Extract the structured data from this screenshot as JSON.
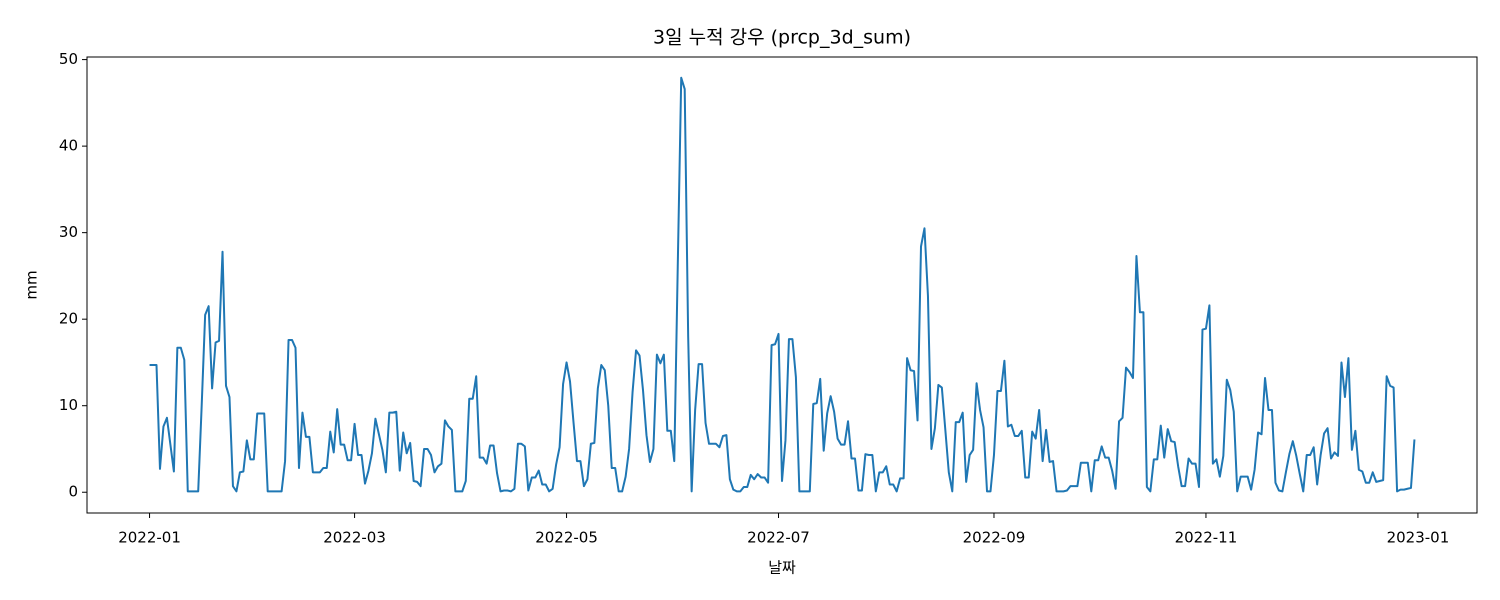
{
  "chart_data": {
    "type": "line",
    "title": "3일 누적 강우 (prcp_3d_sum)",
    "x_label": "날짜",
    "y_label": "mm",
    "color": "#1f77b4",
    "xlim": [
      "2021-12-14",
      "2023-01-18"
    ],
    "ylim": [
      -2.4,
      50.3
    ],
    "xticks": [
      {
        "value": "2022-01-01",
        "label": "2022-01"
      },
      {
        "value": "2022-03-01",
        "label": "2022-03"
      },
      {
        "value": "2022-05-01",
        "label": "2022-05"
      },
      {
        "value": "2022-07-01",
        "label": "2022-07"
      },
      {
        "value": "2022-09-01",
        "label": "2022-09"
      },
      {
        "value": "2022-11-01",
        "label": "2022-11"
      },
      {
        "value": "2023-01-01",
        "label": "2023-01"
      }
    ],
    "yticks": [
      0,
      10,
      20,
      30,
      40,
      50
    ],
    "grid": false,
    "x": [
      "2022-01-01",
      "2022-01-02",
      "2022-01-03",
      "2022-01-04",
      "2022-01-05",
      "2022-01-06",
      "2022-01-07",
      "2022-01-08",
      "2022-01-09",
      "2022-01-10",
      "2022-01-11",
      "2022-01-12",
      "2022-01-13",
      "2022-01-14",
      "2022-01-15",
      "2022-01-16",
      "2022-01-17",
      "2022-01-18",
      "2022-01-19",
      "2022-01-20",
      "2022-01-21",
      "2022-01-22",
      "2022-01-23",
      "2022-01-24",
      "2022-01-25",
      "2022-01-26",
      "2022-01-27",
      "2022-01-28",
      "2022-01-29",
      "2022-01-30",
      "2022-01-31",
      "2022-02-01",
      "2022-02-02",
      "2022-02-03",
      "2022-02-04",
      "2022-02-05",
      "2022-02-06",
      "2022-02-07",
      "2022-02-08",
      "2022-02-09",
      "2022-02-10",
      "2022-02-11",
      "2022-02-12",
      "2022-02-13",
      "2022-02-14",
      "2022-02-15",
      "2022-02-16",
      "2022-02-17",
      "2022-02-18",
      "2022-02-19",
      "2022-02-20",
      "2022-02-21",
      "2022-02-22",
      "2022-02-23",
      "2022-02-24",
      "2022-02-25",
      "2022-02-26",
      "2022-02-27",
      "2022-02-28",
      "2022-03-01",
      "2022-03-02",
      "2022-03-03",
      "2022-03-04",
      "2022-03-05",
      "2022-03-06",
      "2022-03-07",
      "2022-03-08",
      "2022-03-09",
      "2022-03-10",
      "2022-03-11",
      "2022-03-12",
      "2022-03-13",
      "2022-03-14",
      "2022-03-15",
      "2022-03-16",
      "2022-03-17",
      "2022-03-18",
      "2022-03-19",
      "2022-03-20",
      "2022-03-21",
      "2022-03-22",
      "2022-03-23",
      "2022-03-24",
      "2022-03-25",
      "2022-03-26",
      "2022-03-27",
      "2022-03-28",
      "2022-03-29",
      "2022-03-30",
      "2022-03-31",
      "2022-04-01",
      "2022-04-02",
      "2022-04-03",
      "2022-04-04",
      "2022-04-05",
      "2022-04-06",
      "2022-04-07",
      "2022-04-08",
      "2022-04-09",
      "2022-04-10",
      "2022-04-11",
      "2022-04-12",
      "2022-04-13",
      "2022-04-14",
      "2022-04-15",
      "2022-04-16",
      "2022-04-17",
      "2022-04-18",
      "2022-04-19",
      "2022-04-20",
      "2022-04-21",
      "2022-04-22",
      "2022-04-23",
      "2022-04-24",
      "2022-04-25",
      "2022-04-26",
      "2022-04-27",
      "2022-04-28",
      "2022-04-29",
      "2022-04-30",
      "2022-05-01",
      "2022-05-02",
      "2022-05-03",
      "2022-05-04",
      "2022-05-05",
      "2022-05-06",
      "2022-05-07",
      "2022-05-08",
      "2022-05-09",
      "2022-05-10",
      "2022-05-11",
      "2022-05-12",
      "2022-05-13",
      "2022-05-14",
      "2022-05-15",
      "2022-05-16",
      "2022-05-17",
      "2022-05-18",
      "2022-05-19",
      "2022-05-20",
      "2022-05-21",
      "2022-05-22",
      "2022-05-23",
      "2022-05-24",
      "2022-05-25",
      "2022-05-26",
      "2022-05-27",
      "2022-05-28",
      "2022-05-29",
      "2022-05-30",
      "2022-05-31",
      "2022-06-01",
      "2022-06-02",
      "2022-06-03",
      "2022-06-04",
      "2022-06-05",
      "2022-06-06",
      "2022-06-07",
      "2022-06-08",
      "2022-06-09",
      "2022-06-10",
      "2022-06-11",
      "2022-06-12",
      "2022-06-13",
      "2022-06-14",
      "2022-06-15",
      "2022-06-16",
      "2022-06-17",
      "2022-06-18",
      "2022-06-19",
      "2022-06-20",
      "2022-06-21",
      "2022-06-22",
      "2022-06-23",
      "2022-06-24",
      "2022-06-25",
      "2022-06-26",
      "2022-06-27",
      "2022-06-28",
      "2022-06-29",
      "2022-06-30",
      "2022-07-01",
      "2022-07-02",
      "2022-07-03",
      "2022-07-04",
      "2022-07-05",
      "2022-07-06",
      "2022-07-07",
      "2022-07-08",
      "2022-07-09",
      "2022-07-10",
      "2022-07-11",
      "2022-07-12",
      "2022-07-13",
      "2022-07-14",
      "2022-07-15",
      "2022-07-16",
      "2022-07-17",
      "2022-07-18",
      "2022-07-19",
      "2022-07-20",
      "2022-07-21",
      "2022-07-22",
      "2022-07-23",
      "2022-07-24",
      "2022-07-25",
      "2022-07-26",
      "2022-07-27",
      "2022-07-28",
      "2022-07-29",
      "2022-07-30",
      "2022-07-31",
      "2022-08-01",
      "2022-08-02",
      "2022-08-03",
      "2022-08-04",
      "2022-08-05",
      "2022-08-06",
      "2022-08-07",
      "2022-08-08",
      "2022-08-09",
      "2022-08-10",
      "2022-08-11",
      "2022-08-12",
      "2022-08-13",
      "2022-08-14",
      "2022-08-15",
      "2022-08-16",
      "2022-08-17",
      "2022-08-18",
      "2022-08-19",
      "2022-08-20",
      "2022-08-21",
      "2022-08-22",
      "2022-08-23",
      "2022-08-24",
      "2022-08-25",
      "2022-08-26",
      "2022-08-27",
      "2022-08-28",
      "2022-08-29",
      "2022-08-30",
      "2022-08-31",
      "2022-09-01",
      "2022-09-02",
      "2022-09-03",
      "2022-09-04",
      "2022-09-05",
      "2022-09-06",
      "2022-09-07",
      "2022-09-08",
      "2022-09-09",
      "2022-09-10",
      "2022-09-11",
      "2022-09-12",
      "2022-09-13",
      "2022-09-14",
      "2022-09-15",
      "2022-09-16",
      "2022-09-17",
      "2022-09-18",
      "2022-09-19",
      "2022-09-20",
      "2022-09-21",
      "2022-09-22",
      "2022-09-23",
      "2022-09-24",
      "2022-09-25",
      "2022-09-26",
      "2022-09-27",
      "2022-09-28",
      "2022-09-29",
      "2022-09-30",
      "2022-10-01",
      "2022-10-02",
      "2022-10-03",
      "2022-10-04",
      "2022-10-05",
      "2022-10-06",
      "2022-10-07",
      "2022-10-08",
      "2022-10-09",
      "2022-10-10",
      "2022-10-11",
      "2022-10-12",
      "2022-10-13",
      "2022-10-14",
      "2022-10-15",
      "2022-10-16",
      "2022-10-17",
      "2022-10-18",
      "2022-10-19",
      "2022-10-20",
      "2022-10-21",
      "2022-10-22",
      "2022-10-23",
      "2022-10-24",
      "2022-10-25",
      "2022-10-26",
      "2022-10-27",
      "2022-10-28",
      "2022-10-29",
      "2022-10-30",
      "2022-10-31",
      "2022-11-01",
      "2022-11-02",
      "2022-11-03",
      "2022-11-04",
      "2022-11-05",
      "2022-11-06",
      "2022-11-07",
      "2022-11-08",
      "2022-11-09",
      "2022-11-10",
      "2022-11-11",
      "2022-11-12",
      "2022-11-13",
      "2022-11-14",
      "2022-11-15",
      "2022-11-16",
      "2022-11-17",
      "2022-11-18",
      "2022-11-19",
      "2022-11-20",
      "2022-11-21",
      "2022-11-22",
      "2022-11-23",
      "2022-11-24",
      "2022-11-25",
      "2022-11-26",
      "2022-11-27",
      "2022-11-28",
      "2022-11-29",
      "2022-11-30",
      "2022-12-01",
      "2022-12-02",
      "2022-12-03",
      "2022-12-04",
      "2022-12-05",
      "2022-12-06",
      "2022-12-07",
      "2022-12-08",
      "2022-12-09",
      "2022-12-10",
      "2022-12-11",
      "2022-12-12",
      "2022-12-13",
      "2022-12-14",
      "2022-12-15",
      "2022-12-16",
      "2022-12-17",
      "2022-12-18",
      "2022-12-19",
      "2022-12-20",
      "2022-12-21",
      "2022-12-22",
      "2022-12-23",
      "2022-12-24",
      "2022-12-25",
      "2022-12-26",
      "2022-12-27",
      "2022-12-28",
      "2022-12-29",
      "2022-12-30",
      "2022-12-31"
    ],
    "values": [
      14.7,
      14.7,
      14.7,
      2.7,
      7.6,
      8.6,
      5.5,
      2.4,
      16.7,
      16.7,
      15.3,
      0.1,
      0.1,
      0.1,
      0.1,
      10.0,
      20.5,
      21.5,
      12.0,
      17.3,
      17.5,
      27.8,
      12.3,
      11.0,
      0.7,
      0.1,
      2.3,
      2.4,
      6.0,
      3.8,
      3.8,
      9.1,
      9.1,
      9.1,
      0.1,
      0.1,
      0.1,
      0.1,
      0.1,
      3.6,
      17.6,
      17.6,
      16.7,
      2.8,
      9.2,
      6.4,
      6.4,
      2.3,
      2.3,
      2.3,
      2.8,
      2.8,
      7.0,
      4.6,
      9.6,
      5.5,
      5.5,
      3.7,
      3.7,
      7.9,
      4.3,
      4.3,
      1.0,
      2.5,
      4.5,
      8.5,
      6.7,
      4.9,
      2.3,
      9.2,
      9.2,
      9.3,
      2.5,
      6.9,
      4.5,
      5.7,
      1.3,
      1.2,
      0.7,
      5.0,
      5.0,
      4.3,
      2.3,
      3.0,
      3.3,
      8.3,
      7.6,
      7.2,
      0.1,
      0.1,
      0.1,
      1.3,
      10.8,
      10.8,
      13.4,
      4.0,
      4.0,
      3.3,
      5.4,
      5.4,
      2.2,
      0.1,
      0.2,
      0.2,
      0.1,
      0.4,
      5.6,
      5.6,
      5.3,
      0.2,
      1.7,
      1.7,
      2.5,
      0.9,
      0.9,
      0.1,
      0.4,
      3.2,
      5.2,
      12.5,
      15.0,
      12.8,
      8.1,
      3.6,
      3.6,
      0.7,
      1.5,
      5.6,
      5.7,
      12.0,
      14.7,
      14.1,
      10.0,
      2.8,
      2.8,
      0.1,
      0.1,
      1.8,
      5.0,
      11.6,
      16.4,
      15.8,
      11.8,
      6.6,
      3.5,
      5.0,
      15.9,
      14.9,
      15.9,
      7.1,
      7.1,
      3.6,
      26.1,
      47.9,
      46.6,
      18.0,
      0.1,
      9.5,
      14.8,
      14.8,
      8.0,
      5.6,
      5.6,
      5.6,
      5.2,
      6.5,
      6.6,
      1.5,
      0.3,
      0.1,
      0.1,
      0.6,
      0.6,
      2.0,
      1.5,
      2.1,
      1.7,
      1.7,
      1.1,
      17.0,
      17.1,
      18.3,
      1.3,
      6.0,
      17.7,
      17.7,
      13.3,
      0.1,
      0.1,
      0.1,
      0.1,
      10.2,
      10.3,
      13.1,
      4.8,
      9.1,
      11.1,
      9.3,
      6.2,
      5.5,
      5.5,
      8.2,
      3.9,
      3.9,
      0.2,
      0.2,
      4.4,
      4.3,
      4.3,
      0.1,
      2.3,
      2.3,
      3.0,
      0.9,
      0.9,
      0.1,
      1.6,
      1.6,
      15.5,
      14.1,
      14.0,
      8.3,
      28.4,
      30.5,
      22.7,
      5.0,
      7.4,
      12.4,
      12.1,
      7.2,
      2.3,
      0.1,
      8.1,
      8.1,
      9.2,
      1.2,
      4.3,
      4.9,
      12.6,
      9.5,
      7.5,
      0.1,
      0.1,
      4.3,
      11.7,
      11.7,
      15.2,
      7.6,
      7.8,
      6.5,
      6.5,
      7.1,
      1.7,
      1.7,
      7.0,
      6.2,
      9.5,
      3.6,
      7.2,
      3.5,
      3.6,
      0.1,
      0.1,
      0.1,
      0.2,
      0.7,
      0.7,
      0.7,
      3.4,
      3.4,
      3.4,
      0.1,
      3.7,
      3.7,
      5.3,
      4.0,
      4.0,
      2.5,
      0.4,
      8.2,
      8.6,
      14.4,
      13.9,
      13.2,
      27.3,
      20.8,
      20.8,
      0.6,
      0.1,
      3.8,
      3.8,
      7.7,
      4.0,
      7.3,
      5.9,
      5.8,
      3.0,
      0.7,
      0.7,
      3.9,
      3.3,
      3.3,
      0.6,
      18.8,
      18.9,
      21.6,
      3.3,
      3.8,
      1.8,
      4.2,
      13.0,
      11.8,
      9.3,
      0.1,
      1.8,
      1.8,
      1.8,
      0.3,
      2.6,
      6.9,
      6.7,
      13.2,
      9.5,
      9.5,
      1.1,
      0.2,
      0.1,
      2.3,
      4.4,
      5.9,
      4.2,
      2.1,
      0.1,
      4.3,
      4.3,
      5.2,
      0.9,
      4.3,
      6.8,
      7.4,
      3.9,
      4.6,
      4.2,
      15.0,
      11.0,
      15.5,
      4.9,
      7.1,
      2.6,
      2.4,
      1.1,
      1.1,
      2.3,
      1.2,
      1.3,
      1.4,
      13.4,
      12.3,
      12.1,
      0.1,
      0.3,
      0.3,
      0.4,
      0.5,
      6.1
    ]
  }
}
